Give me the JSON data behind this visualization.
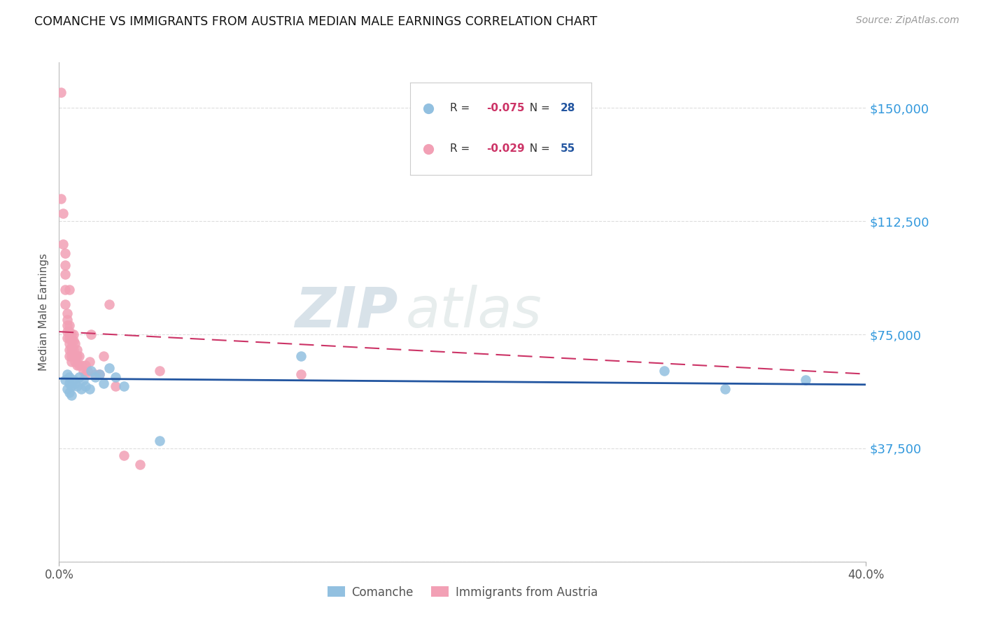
{
  "title": "COMANCHE VS IMMIGRANTS FROM AUSTRIA MEDIAN MALE EARNINGS CORRELATION CHART",
  "source": "Source: ZipAtlas.com",
  "ylabel": "Median Male Earnings",
  "xlim": [
    0.0,
    0.4
  ],
  "ylim": [
    0,
    165000
  ],
  "watermark_zip": "ZIP",
  "watermark_atlas": "atlas",
  "ytick_vals": [
    0,
    37500,
    75000,
    112500,
    150000
  ],
  "ytick_labels": [
    "",
    "$37,500",
    "$75,000",
    "$112,500",
    "$150,000"
  ],
  "xtick_vals": [
    0.0,
    0.4
  ],
  "xtick_labels": [
    "0.0%",
    "40.0%"
  ],
  "legend_blue_r": "-0.075",
  "legend_blue_n": "28",
  "legend_pink_r": "-0.029",
  "legend_pink_n": "55",
  "legend_label_blue": "Comanche",
  "legend_label_pink": "Immigrants from Austria",
  "scatter_blue_x": [
    0.003,
    0.004,
    0.004,
    0.005,
    0.005,
    0.005,
    0.006,
    0.006,
    0.007,
    0.008,
    0.009,
    0.01,
    0.011,
    0.012,
    0.013,
    0.015,
    0.016,
    0.018,
    0.02,
    0.022,
    0.025,
    0.028,
    0.032,
    0.05,
    0.12,
    0.3,
    0.33,
    0.37
  ],
  "scatter_blue_y": [
    60000,
    57000,
    62000,
    59000,
    56000,
    61000,
    58000,
    55000,
    60000,
    59000,
    58000,
    61000,
    57000,
    60000,
    58000,
    57000,
    63000,
    61000,
    62000,
    59000,
    64000,
    61000,
    58000,
    40000,
    68000,
    63000,
    57000,
    60000
  ],
  "scatter_pink_x": [
    0.001,
    0.001,
    0.002,
    0.002,
    0.003,
    0.003,
    0.003,
    0.003,
    0.003,
    0.004,
    0.004,
    0.004,
    0.004,
    0.004,
    0.005,
    0.005,
    0.005,
    0.005,
    0.005,
    0.005,
    0.005,
    0.006,
    0.006,
    0.006,
    0.006,
    0.006,
    0.006,
    0.007,
    0.007,
    0.007,
    0.007,
    0.008,
    0.008,
    0.008,
    0.009,
    0.009,
    0.009,
    0.01,
    0.01,
    0.011,
    0.012,
    0.013,
    0.013,
    0.014,
    0.015,
    0.016,
    0.018,
    0.02,
    0.022,
    0.025,
    0.028,
    0.032,
    0.04,
    0.05,
    0.12
  ],
  "scatter_pink_y": [
    155000,
    120000,
    115000,
    105000,
    102000,
    98000,
    95000,
    90000,
    85000,
    82000,
    80000,
    78000,
    76000,
    74000,
    78000,
    76000,
    74000,
    72000,
    70000,
    68000,
    90000,
    75000,
    73000,
    71000,
    70000,
    68000,
    66000,
    75000,
    73000,
    70000,
    68000,
    72000,
    68000,
    66000,
    70000,
    68000,
    65000,
    68000,
    65000,
    65000,
    63000,
    65000,
    62000,
    63000,
    66000,
    75000,
    62000,
    62000,
    68000,
    85000,
    58000,
    35000,
    32000,
    63000,
    62000
  ],
  "color_blue": "#92C0E0",
  "color_pink": "#F2A0B5",
  "color_line_blue": "#2255A0",
  "color_line_pink": "#CC3366",
  "color_ytick": "#3399DD",
  "color_title": "#111111",
  "color_source": "#999999",
  "background_color": "#FFFFFF",
  "grid_color": "#DDDDDD",
  "blue_line_y0": 60500,
  "blue_line_y1": 58500,
  "pink_line_y0": 76000,
  "pink_line_y1": 62000
}
